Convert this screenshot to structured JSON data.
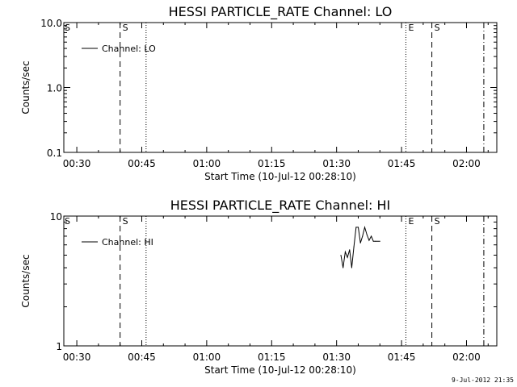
{
  "chart_data": [
    {
      "type": "line",
      "title": "HESSI PARTICLE_RATE Channel: LO",
      "xlabel": "Start Time (10-Jul-12 00:28:10)",
      "ylabel": "Counts/sec",
      "y_scale": "log",
      "ylim": [
        0.1,
        10.0
      ],
      "xlim": [
        "00:27",
        "02:07"
      ],
      "x_ticks": [
        "00:30",
        "00:45",
        "01:00",
        "01:15",
        "01:30",
        "01:45",
        "02:00"
      ],
      "y_ticks": [
        "0.1",
        "1.0",
        "10.0"
      ],
      "legend": {
        "placement": "top-left",
        "entries": [
          "Channel: LO"
        ]
      },
      "series": [
        {
          "name": "Channel: LO",
          "points": []
        }
      ],
      "event_lines": [
        {
          "x": "00:40",
          "style": "dashed",
          "label": "S"
        },
        {
          "x": "00:46",
          "style": "dotted",
          "label": ""
        },
        {
          "x": "01:46",
          "style": "dotted",
          "label": "E"
        },
        {
          "x": "01:52",
          "style": "dashed",
          "label": "S"
        },
        {
          "x": "02:04",
          "style": "dashdot",
          "label": ""
        }
      ],
      "axis_markers": [
        "S"
      ]
    },
    {
      "type": "line",
      "title": "HESSI PARTICLE_RATE Channel: HI",
      "xlabel": "Start Time (10-Jul-12 00:28:10)",
      "ylabel": "Counts/sec",
      "y_scale": "log",
      "ylim": [
        1,
        10
      ],
      "xlim": [
        "00:27",
        "02:07"
      ],
      "x_ticks": [
        "00:30",
        "00:45",
        "01:00",
        "01:15",
        "01:30",
        "01:45",
        "02:00"
      ],
      "y_ticks": [
        "1",
        "10"
      ],
      "legend": {
        "placement": "top-left",
        "entries": [
          "Channel: HI"
        ]
      },
      "series": [
        {
          "name": "Channel: HI",
          "points": [
            [
              "01:31:00",
              5.0
            ],
            [
              "01:31:30",
              4.0
            ],
            [
              "01:32:00",
              5.3
            ],
            [
              "01:32:30",
              4.8
            ],
            [
              "01:33:00",
              5.5
            ],
            [
              "01:33:30",
              4.0
            ],
            [
              "01:34:00",
              5.8
            ],
            [
              "01:34:30",
              8.2
            ],
            [
              "01:35:00",
              8.2
            ],
            [
              "01:35:30",
              6.2
            ],
            [
              "01:36:00",
              7.0
            ],
            [
              "01:36:30",
              8.2
            ],
            [
              "01:37:00",
              7.2
            ],
            [
              "01:37:30",
              6.5
            ],
            [
              "01:38:00",
              7.0
            ],
            [
              "01:38:30",
              6.4
            ],
            [
              "01:39:00",
              6.4
            ],
            [
              "01:40:00",
              6.4
            ]
          ]
        }
      ],
      "event_lines": [
        {
          "x": "00:40",
          "style": "dashed",
          "label": "S"
        },
        {
          "x": "00:46",
          "style": "dotted",
          "label": ""
        },
        {
          "x": "01:46",
          "style": "dotted",
          "label": "E"
        },
        {
          "x": "01:52",
          "style": "dashed",
          "label": "S"
        },
        {
          "x": "02:04",
          "style": "dashdot",
          "label": ""
        }
      ],
      "axis_markers": [
        "S"
      ]
    }
  ],
  "timestamp": "9-Jul-2012 21:35"
}
